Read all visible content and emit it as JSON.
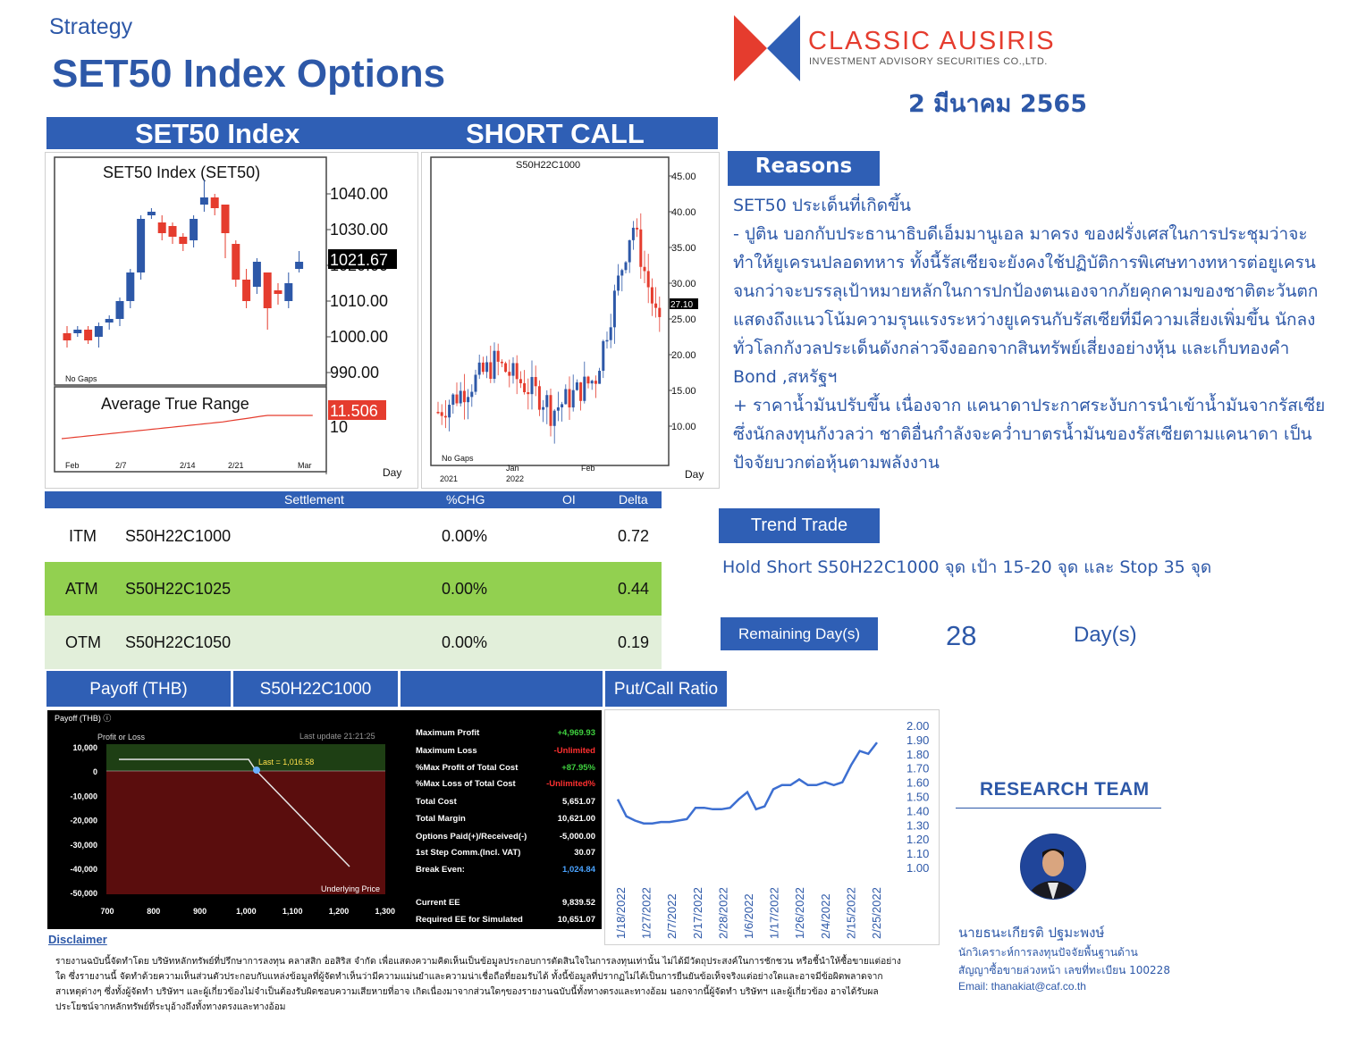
{
  "header": {
    "category": "Strategy",
    "title": "SET50 Index Options",
    "company_name": "CLASSIC AUSIRIS",
    "company_sub": "INVESTMENT ADVISORY SECURITIES CO.,LTD.",
    "date": "2 มีนาคม 2565",
    "colors": {
      "brand_blue": "#2f5fb5",
      "brand_red": "#e53c2e"
    }
  },
  "section": {
    "left_title": "SET50 Index",
    "right_title": "SHORT CALL"
  },
  "set50_chart": {
    "title": "SET50  Index  (SET50)",
    "price_label": "1021.67",
    "y_ticks": [
      "1040.00",
      "1030.00",
      "1020.00",
      "1010.00",
      "1000.00",
      "990.00"
    ],
    "gaps_label": "No  Gaps",
    "atr_title": "Average  True  Range",
    "atr_label": "11.506",
    "atr_tick": "10",
    "x_ticks": [
      "Feb",
      "2/7",
      "2/14",
      "2/21",
      "Mar"
    ],
    "unit": "Day"
  },
  "option_chart": {
    "title": "S50H22C1000",
    "price_label": "27.10",
    "y_ticks": [
      "45.00",
      "40.00",
      "35.00",
      "30.00",
      "25.00",
      "20.00",
      "15.00",
      "10.00"
    ],
    "gaps_label": "No  Gaps",
    "x_ticks": [
      "2021",
      "Jan",
      "2022",
      "Feb"
    ],
    "unit": "Day"
  },
  "reasons": {
    "label": "Reasons",
    "text": "SET50 ประเด็นที่เกิดขึ้น\n- ปูติน บอกกับประธานาธิบดีเอ็มมานูเอล มาครง ของฝรั่งเศสในการประชุมว่าจะทำให้ยูเครนปลอดทหาร ทั้งนี้รัสเซียจะยังคงใช้ปฏิบัติการพิเศษทางทหารต่อยูเครน จนกว่าจะบรรลุเป้าหมายหลักในการปกป้องตนเองจากภัยคุกคามของชาติตะวันตก แสดงถึงแนวโน้มความรุนแรงระหว่างยูเครนกับรัสเซียที่มีความเสี่ยงเพิ่มขึ้น นักลงทั่วโลกกังวลประเด็นดังกล่าวจึงออกจากสินทรัพย์เสี่ยงอย่างหุ้น และเก็บทองคำ Bond ,สหรัฐฯ\n+ ราคาน้ำมันปรับขึ้น เนื่องจาก แคนาดาประกาศระงับการนำเข้าน้ำมันจากรัสเซีย ซึ่งนักลงทุนกังวลว่า ชาติอื่นกำลังจะคว่ำบาตรน้ำมันของรัสเซียตามแคนาดา เป็นปัจจัยบวกต่อหุ้นตามพลังงาน"
  },
  "options_table": {
    "headers": {
      "settlement": "Settlement",
      "chg": "%CHG",
      "oi": "OI",
      "delta": "Delta"
    },
    "rows": [
      {
        "type": "ITM",
        "series": "S50H22C1000",
        "chg": "0.00%",
        "delta": "0.72"
      },
      {
        "type": "ATM",
        "series": "S50H22C1025",
        "chg": "0.00%",
        "delta": "0.44"
      },
      {
        "type": "OTM",
        "series": "S50H22C1050",
        "chg": "0.00%",
        "delta": "0.19"
      }
    ]
  },
  "trend_trade": {
    "label": "Trend Trade",
    "text": "Hold Short S50H22C1000 จุด เป้า 15-20 จุด และ Stop 35 จุด"
  },
  "remaining": {
    "label": "Remaining Day(s)",
    "value": "28",
    "unit": "Day(s)"
  },
  "payoff": {
    "bar_label": "Payoff (THB)",
    "bar_series": "S50H22C1000",
    "pc_label": "Put/Call Ratio",
    "header": "Payoff (THB) ⓘ",
    "profit_or_loss": "Profit or Loss",
    "last_update": "Last update 21:21:25",
    "last_label": "Last = 1,016.58",
    "underlying": "Underlying Price",
    "y_ticks": [
      "10,000",
      "0",
      "-10,000",
      "-20,000",
      "-30,000",
      "-40,000",
      "-50,000"
    ],
    "x_ticks": [
      "700",
      "800",
      "900",
      "1,000",
      "1,100",
      "1,200",
      "1,300"
    ],
    "stats": [
      {
        "label": "Maximum Profit",
        "value": "+4,969.93",
        "color": "#3fd13f"
      },
      {
        "label": "Maximum Loss",
        "value": "-Unlimited",
        "color": "#ff3030"
      },
      {
        "label": "%Max Profit of Total Cost",
        "value": "+87.95%",
        "color": "#3fd13f"
      },
      {
        "label": "%Max Loss of Total Cost",
        "value": "-Unlimited%",
        "color": "#ff3030"
      },
      {
        "label": "Total Cost",
        "value": "5,651.07",
        "color": "#ffffff"
      },
      {
        "label": "Total Margin",
        "value": "10,621.00",
        "color": "#ffffff"
      },
      {
        "label": "Options Paid(+)/Received(-)",
        "value": "-5,000.00",
        "color": "#ffffff"
      },
      {
        "label": "1st Step Comm.(Incl. VAT)",
        "value": "30.07",
        "color": "#ffffff"
      },
      {
        "label": "Break Even:",
        "value": "1,024.84",
        "color": "#4aa3ff"
      },
      {
        "label": "Current EE",
        "value": "9,839.52",
        "color": "#ffffff"
      },
      {
        "label": "Required EE for Simulated",
        "value": "10,651.07",
        "color": "#ffffff"
      }
    ]
  },
  "chart_data": {
    "type": "line",
    "title": "",
    "x": [
      "1/18/2022",
      "1/19/2022",
      "1/20/2022",
      "1/21/2022",
      "1/24/2022",
      "1/25/2022",
      "1/26/2022",
      "1/27/2022",
      "1/28/2022",
      "1/31/2022",
      "2/1/2022",
      "2/2/2022",
      "2/3/2022",
      "2/4/2022",
      "2/7/2022",
      "2/8/2022",
      "2/9/2022",
      "2/10/2022",
      "2/11/2022",
      "2/14/2022",
      "2/15/2022",
      "2/16/2022",
      "2/17/2022",
      "2/18/2022",
      "2/21/2022",
      "2/22/2022",
      "2/23/2022",
      "2/24/2022",
      "2/25/2022",
      "2/28/2022",
      "3/1/2022"
    ],
    "x_ticks": [
      "1/18/2022",
      "1/27/2022",
      "2/7/2022",
      "2/17/2022",
      "2/28/2022",
      "1/6/2022",
      "1/17/2022",
      "1/26/2022",
      "2/4/2022",
      "2/15/2022",
      "2/25/2022"
    ],
    "series": [
      {
        "values": [
          1.48,
          1.36,
          1.33,
          1.31,
          1.31,
          1.32,
          1.32,
          1.33,
          1.34,
          1.42,
          1.42,
          1.41,
          1.41,
          1.42,
          1.48,
          1.53,
          1.41,
          1.43,
          1.55,
          1.58,
          1.58,
          1.62,
          1.58,
          1.58,
          1.6,
          1.58,
          1.6,
          1.72,
          1.82,
          1.8,
          1.88
        ]
      }
    ],
    "y_ticks": [
      "2.00",
      "1.90",
      "1.80",
      "1.70",
      "1.60",
      "1.50",
      "1.40",
      "1.30",
      "1.20",
      "1.10",
      "1.00"
    ],
    "ylim": [
      1.0,
      2.0
    ],
    "color": "#3d6fd1"
  },
  "research": {
    "title": "RESEARCH TEAM",
    "name": "นายธนะเกียรติ ปฐมะพงษ์",
    "role": "นักวิเคราะห์การลงทุนปัจจัยพื้นฐานด้าน",
    "license": "สัญญาซื้อขายล่วงหน้า เลขที่ทะเบียน 100228",
    "email": "Email: thanakiat@caf.co.th"
  },
  "disclaimer": {
    "label": "Disclaimer",
    "text": "รายงานฉบับนี้จัดทำโดย บริษัทหลักทรัพย์ที่ปรึกษาการลงทุน คลาสสิก ออสิริส จำกัด เพื่อแสดงความคิดเห็นเป็นข้อมูลประกอบการตัดสินใจในการลงทุนเท่านั้น ไม่ได้มีวัตถุประสงค์ในการชักชวน หรือชี้นำให้ซื้อขายแต่อย่างใด ซึ่งรายงานนี้ จัดทำด้วยความเห็นส่วนตัวประกอบกับแหล่งข้อมูลที่ผู้จัดทำเห็นว่ามีความแม่นยำและความน่าเชื่อถือที่ยอมรับได้ ทั้งนี้ข้อมูลที่ปรากฏไม่ได้เป็นการยืนยันข้อเท็จจริงแต่อย่างใดและอาจมีข้อผิดพลาดจากสาเหตุต่างๆ ซึ่งทั้งผู้จัดทำ บริษัทฯ และผู้เกี่ยวข้องไม่จำเป็นต้องรับผิดชอบความเสียหายที่อาจ เกิดเนื่องมาจากส่วนใดๆของรายงานฉบับนี้ทั้งทางตรงและทางอ้อม นอกจากนี้ผู้จัดทำ บริษัทฯ และผู้เกี่ยวข้อง อาจได้รับผลประโยชน์จากหลักทรัพย์ที่ระบุอ้างถึงทั้งทางตรงและทางอ้อม"
  }
}
